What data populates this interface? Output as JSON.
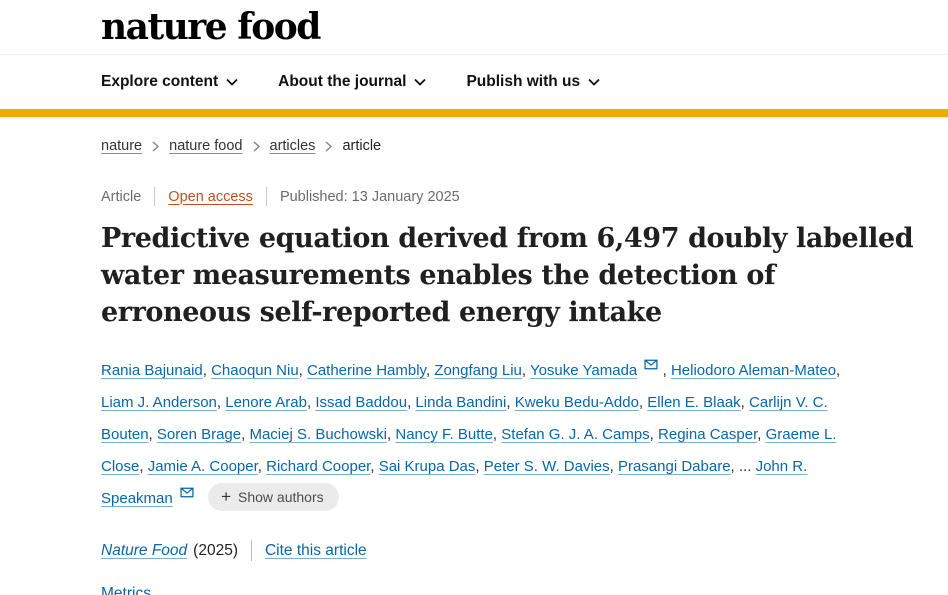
{
  "header": {
    "logo": "nature food",
    "accent_color": "#f5a800",
    "nav": [
      {
        "label": "Explore content"
      },
      {
        "label": "About the journal"
      },
      {
        "label": "Publish with us"
      }
    ]
  },
  "breadcrumb": {
    "items": [
      {
        "label": "nature"
      },
      {
        "label": "nature food"
      },
      {
        "label": "articles"
      },
      {
        "label": "article"
      }
    ]
  },
  "article": {
    "meta": {
      "type": "Article",
      "access": "Open access",
      "published": "Published: 13 January 2025"
    },
    "title_lines": [
      "Predictive equation derived from 6,497 doubly labelled",
      "water measurements enables the detection of",
      "erroneous self-reported energy intake"
    ],
    "authors": {
      "list": [
        {
          "name": "Rania Bajunaid"
        },
        {
          "name": "Chaoqun Niu"
        },
        {
          "name": "Catherine Hambly"
        },
        {
          "name": "Zongfang Liu"
        },
        {
          "name": "Yosuke Yamada",
          "email": true
        },
        {
          "name": "Heliodoro Aleman-Mateo"
        },
        {
          "name": "Liam J. Anderson"
        },
        {
          "name": "Lenore Arab"
        },
        {
          "name": "Issad Baddou"
        },
        {
          "name": "Linda Bandini"
        },
        {
          "name": "Kweku Bedu-Addo"
        },
        {
          "name": "Ellen E. Blaak"
        },
        {
          "name": "Carlijn V. C. Bouten"
        },
        {
          "name": "Soren Brage"
        },
        {
          "name": "Maciej S. Buchowski"
        },
        {
          "name": "Nancy F. Butte"
        },
        {
          "name": "Stefan G. J. A. Camps"
        },
        {
          "name": "Regina Casper"
        },
        {
          "name": "Graeme L. Close"
        },
        {
          "name": "Jamie A. Cooper"
        },
        {
          "name": "Richard Cooper"
        },
        {
          "name": "Sai Krupa Das"
        },
        {
          "name": "Peter S. W. Davies"
        },
        {
          "name": "Prasangi Dabare"
        },
        {
          "name": "John R. Speakman",
          "email": true,
          "ellipsis_before": true
        }
      ],
      "ellipsis": "...",
      "show_authors_icon": "+",
      "show_authors_label": "Show authors"
    },
    "citation": {
      "journal": "Nature Food",
      "year": "(2025)",
      "cite_link": "Cite this article"
    },
    "metrics_label": "Metrics"
  },
  "colors": {
    "link_blue": "#0966a8",
    "open_access": "#c04e21",
    "accent": "#f5a800"
  }
}
